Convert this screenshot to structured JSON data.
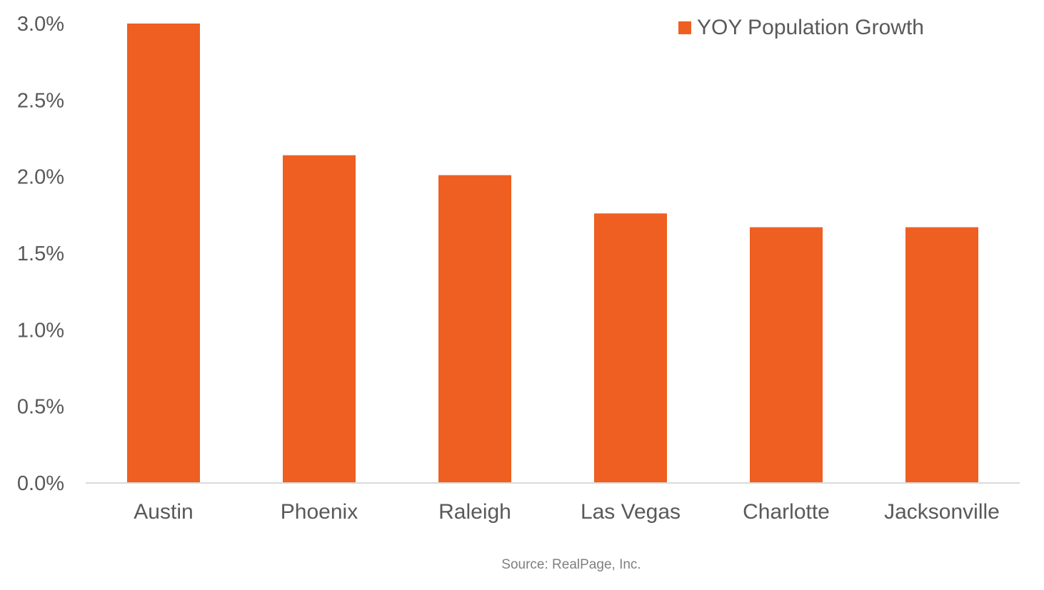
{
  "chart_data": {
    "type": "bar",
    "title": "",
    "xlabel": "",
    "ylabel": "",
    "categories": [
      "Austin",
      "Phoenix",
      "Raleigh",
      "Las Vegas",
      "Charlotte",
      "Jacksonville"
    ],
    "series": [
      {
        "name": "YOY Population Growth",
        "values": [
          3.0,
          2.14,
          2.01,
          1.76,
          1.67,
          1.67
        ],
        "color": "#EE5F21"
      }
    ],
    "ylim": [
      0,
      3.0
    ],
    "yticks": [
      0.0,
      0.5,
      1.0,
      1.5,
      2.0,
      2.5,
      3.0
    ],
    "ytick_labels": [
      "0.0%",
      "0.5%",
      "1.0%",
      "1.5%",
      "2.0%",
      "2.5%",
      "3.0%"
    ],
    "grid": false,
    "legend_position": "top-right",
    "source": "Source: RealPage, Inc."
  }
}
